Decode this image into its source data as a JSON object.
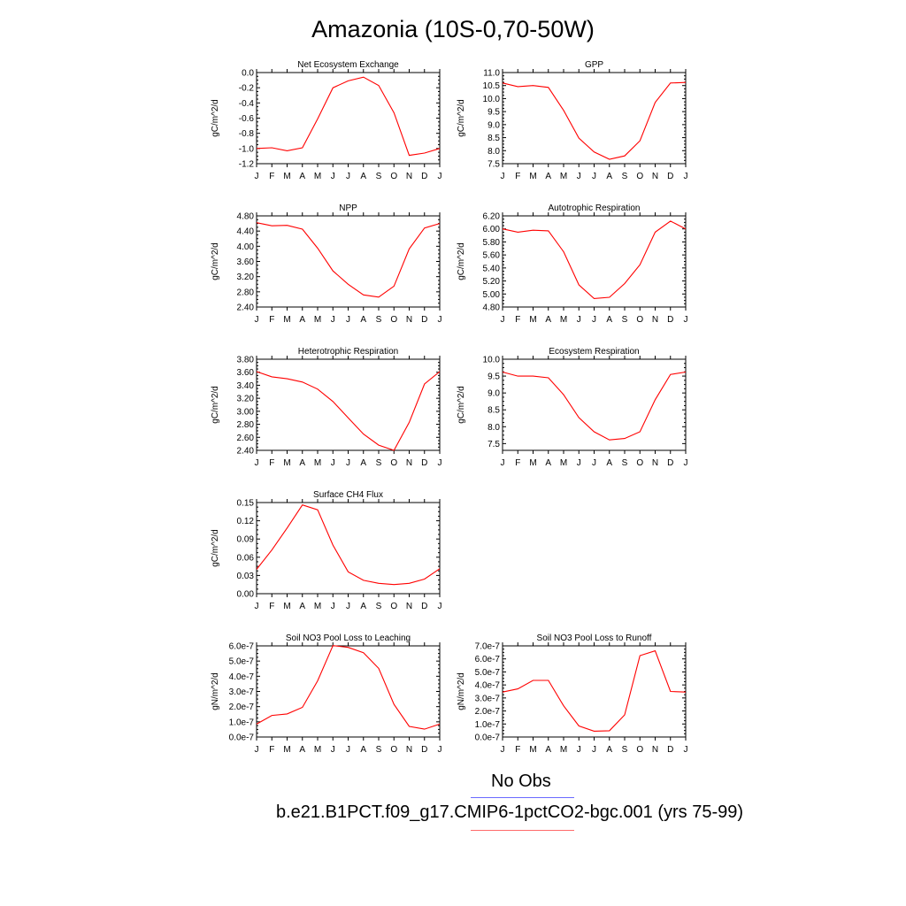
{
  "title": "Amazonia (10S-0,70-50W)",
  "colors": {
    "model_line": "#ff0000",
    "obs_line": "#6a6aff",
    "legend_model_line": "#ff6a6a",
    "axis": "#000000"
  },
  "months": [
    "J",
    "F",
    "M",
    "A",
    "M",
    "J",
    "J",
    "A",
    "S",
    "O",
    "N",
    "D",
    "J"
  ],
  "legend": {
    "obs": "No Obs",
    "model": "b.e21.B1PCT.f09_g17.CMIP6-1pctCO2-bgc.001 (yrs 75-99)"
  },
  "chart_data": [
    {
      "type": "line",
      "title": "Net Ecosystem Exchange",
      "ylabel": "gC/m^2/d",
      "ylim": [
        -1.2,
        0.0
      ],
      "yticks": [
        -1.2,
        -1.0,
        -0.8,
        -0.6,
        -0.4,
        -0.2,
        0.0
      ],
      "ytick_labels": [
        "-1.2",
        "-1.0",
        "-0.8",
        "-0.6",
        "-0.4",
        "-0.2",
        "0.0"
      ],
      "categories": [
        "J",
        "F",
        "M",
        "A",
        "M",
        "J",
        "J",
        "A",
        "S",
        "O",
        "N",
        "D",
        "J"
      ],
      "values": [
        -1.0,
        -0.99,
        -1.03,
        -0.99,
        -0.61,
        -0.2,
        -0.11,
        -0.06,
        -0.17,
        -0.53,
        -1.09,
        -1.06,
        -1.0
      ]
    },
    {
      "type": "line",
      "title": "GPP",
      "ylabel": "gC/m^2/d",
      "ylim": [
        7.5,
        11.0
      ],
      "yticks": [
        7.5,
        8.0,
        8.5,
        9.0,
        9.5,
        10.0,
        10.5,
        11.0
      ],
      "ytick_labels": [
        "7.5",
        "8.0",
        "8.5",
        "9.0",
        "9.5",
        "10.0",
        "10.5",
        "11.0"
      ],
      "categories": [
        "J",
        "F",
        "M",
        "A",
        "M",
        "J",
        "J",
        "A",
        "S",
        "O",
        "N",
        "D",
        "J"
      ],
      "values": [
        10.6,
        10.46,
        10.5,
        10.43,
        9.55,
        8.48,
        7.95,
        7.67,
        7.8,
        8.38,
        9.85,
        10.6,
        10.62
      ]
    },
    {
      "type": "line",
      "title": "NPP",
      "ylabel": "gC/m^2/d",
      "ylim": [
        2.4,
        4.8
      ],
      "yticks": [
        2.4,
        2.8,
        3.2,
        3.6,
        4.0,
        4.4,
        4.8
      ],
      "ytick_labels": [
        "2.40",
        "2.80",
        "3.20",
        "3.60",
        "4.00",
        "4.40",
        "4.80"
      ],
      "categories": [
        "J",
        "F",
        "M",
        "A",
        "M",
        "J",
        "J",
        "A",
        "S",
        "O",
        "N",
        "D",
        "J"
      ],
      "values": [
        4.62,
        4.54,
        4.55,
        4.45,
        3.95,
        3.35,
        3.0,
        2.72,
        2.66,
        2.95,
        3.93,
        4.48,
        4.6
      ]
    },
    {
      "type": "line",
      "title": "Autotrophic Respiration",
      "ylabel": "gC/m^2/d",
      "ylim": [
        4.8,
        6.2
      ],
      "yticks": [
        4.8,
        5.0,
        5.2,
        5.4,
        5.6,
        5.8,
        6.0,
        6.2
      ],
      "ytick_labels": [
        "4.80",
        "5.00",
        "5.20",
        "5.40",
        "5.60",
        "5.80",
        "6.00",
        "6.20"
      ],
      "categories": [
        "J",
        "F",
        "M",
        "A",
        "M",
        "J",
        "J",
        "A",
        "S",
        "O",
        "N",
        "D",
        "J"
      ],
      "values": [
        6.0,
        5.95,
        5.98,
        5.97,
        5.65,
        5.14,
        4.93,
        4.95,
        5.16,
        5.45,
        5.95,
        6.12,
        6.0
      ]
    },
    {
      "type": "line",
      "title": "Heterotrophic Respiration",
      "ylabel": "gC/m^2/d",
      "ylim": [
        2.4,
        3.8
      ],
      "yticks": [
        2.4,
        2.6,
        2.8,
        3.0,
        3.2,
        3.4,
        3.6,
        3.8
      ],
      "ytick_labels": [
        "2.40",
        "2.60",
        "2.80",
        "3.00",
        "3.20",
        "3.40",
        "3.60",
        "3.80"
      ],
      "categories": [
        "J",
        "F",
        "M",
        "A",
        "M",
        "J",
        "J",
        "A",
        "S",
        "O",
        "N",
        "D",
        "J"
      ],
      "values": [
        3.61,
        3.53,
        3.5,
        3.45,
        3.34,
        3.15,
        2.9,
        2.65,
        2.48,
        2.4,
        2.83,
        3.42,
        3.61
      ]
    },
    {
      "type": "line",
      "title": "Ecosystem Respiration",
      "ylabel": "gC/m^2/d",
      "ylim": [
        7.3,
        10.0
      ],
      "yticks": [
        7.5,
        8.0,
        8.5,
        9.0,
        9.5,
        10.0
      ],
      "ytick_labels": [
        "7.5",
        "8.0",
        "8.5",
        "9.0",
        "9.5",
        "10.0"
      ],
      "categories": [
        "J",
        "F",
        "M",
        "A",
        "M",
        "J",
        "J",
        "A",
        "S",
        "O",
        "N",
        "D",
        "J"
      ],
      "values": [
        9.62,
        9.5,
        9.5,
        9.45,
        8.95,
        8.27,
        7.85,
        7.61,
        7.65,
        7.85,
        8.8,
        9.55,
        9.62
      ]
    },
    {
      "type": "line",
      "title": "Surface CH4 Flux",
      "ylabel": "gC/m^2/d",
      "ylim": [
        0.0,
        0.15
      ],
      "yticks": [
        0.0,
        0.03,
        0.06,
        0.09,
        0.12,
        0.15
      ],
      "ytick_labels": [
        "0.00",
        "0.03",
        "0.06",
        "0.09",
        "0.12",
        "0.15"
      ],
      "categories": [
        "J",
        "F",
        "M",
        "A",
        "M",
        "J",
        "J",
        "A",
        "S",
        "O",
        "N",
        "D",
        "J"
      ],
      "values": [
        0.04,
        0.072,
        0.108,
        0.146,
        0.138,
        0.08,
        0.036,
        0.022,
        0.017,
        0.015,
        0.017,
        0.024,
        0.041
      ]
    },
    {
      "type": "line",
      "title": "Soil NO3 Pool Loss to Leaching",
      "ylabel": "gN/m^2/d",
      "ylim": [
        0.0,
        6e-07
      ],
      "yticks": [
        0.0,
        1e-07,
        2e-07,
        3e-07,
        4e-07,
        5e-07,
        6e-07
      ],
      "ytick_labels": [
        "0.0e-7",
        "1.0e-7",
        "2.0e-7",
        "3.0e-7",
        "4.0e-7",
        "5.0e-7",
        "6.0e-7"
      ],
      "categories": [
        "J",
        "F",
        "M",
        "A",
        "M",
        "J",
        "J",
        "A",
        "S",
        "O",
        "N",
        "D",
        "J"
      ],
      "values": [
        8.5e-08,
        1.42e-07,
        1.52e-07,
        1.95e-07,
        3.7e-07,
        6.02e-07,
        5.9e-07,
        5.55e-07,
        4.52e-07,
        2.15e-07,
        7e-08,
        5.2e-08,
        8.5e-08
      ]
    },
    {
      "type": "line",
      "title": "Soil NO3 Pool Loss to Runoff",
      "ylabel": "gN/m^2/d",
      "ylim": [
        0.0,
        7e-07
      ],
      "yticks": [
        0.0,
        1e-07,
        2e-07,
        3e-07,
        4e-07,
        5e-07,
        6e-07,
        7e-07
      ],
      "ytick_labels": [
        "0.0e-7",
        "1.0e-7",
        "2.0e-7",
        "3.0e-7",
        "4.0e-7",
        "5.0e-7",
        "6.0e-7",
        "7.0e-7"
      ],
      "categories": [
        "J",
        "F",
        "M",
        "A",
        "M",
        "J",
        "J",
        "A",
        "S",
        "O",
        "N",
        "D",
        "J"
      ],
      "values": [
        3.45e-07,
        3.7e-07,
        4.35e-07,
        4.35e-07,
        2.4e-07,
        8.5e-08,
        4.5e-08,
        4.8e-08,
        1.7e-07,
        6.25e-07,
        6.62e-07,
        3.5e-07,
        3.45e-07
      ]
    }
  ]
}
